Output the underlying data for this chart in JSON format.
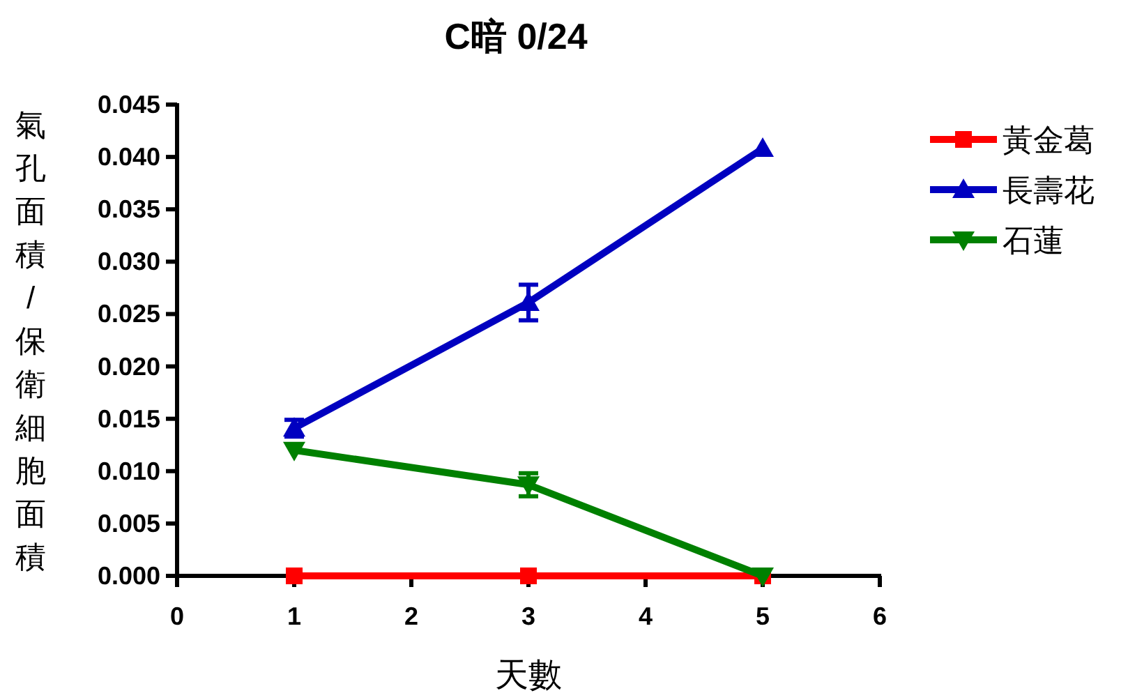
{
  "chart_data": {
    "type": "line",
    "title": "C暗  0/24",
    "xlabel": "天數",
    "ylabel": "氣孔面積/保衛細胞面積",
    "x": [
      1,
      3,
      5
    ],
    "series": [
      {
        "name": "黃金葛",
        "color": "#ff0000",
        "marker": "square",
        "values": [
          0,
          0,
          0
        ]
      },
      {
        "name": "長壽花",
        "color": "#0000c0",
        "marker": "triangle",
        "values": [
          0.0141,
          0.0261,
          0.0408
        ],
        "errors": [
          0.0008,
          0.0017,
          null
        ]
      },
      {
        "name": "石蓮",
        "color": "#008000",
        "marker": "triangle-down",
        "values": [
          0.012,
          0.0087,
          0
        ],
        "errors": [
          null,
          0.0011,
          null
        ]
      }
    ],
    "xlim": [
      0,
      6
    ],
    "xticks": [
      0,
      1,
      2,
      3,
      4,
      5,
      6
    ],
    "ylim": [
      0,
      0.045
    ],
    "yticks": [
      {
        "value": 0,
        "label": "0.000"
      },
      {
        "value": 0.005,
        "label": "0.005"
      },
      {
        "value": 0.01,
        "label": "0.010"
      },
      {
        "value": 0.015,
        "label": "0.015"
      },
      {
        "value": 0.02,
        "label": "0.020"
      },
      {
        "value": 0.025,
        "label": "0.025"
      },
      {
        "value": 0.03,
        "label": "0.030"
      },
      {
        "value": 0.035,
        "label": "0.035"
      },
      {
        "value": 0.04,
        "label": "0.040"
      },
      {
        "value": 0.045,
        "label": "0.045"
      }
    ],
    "grid": false,
    "legend": "top right",
    "line_style": "solid"
  }
}
